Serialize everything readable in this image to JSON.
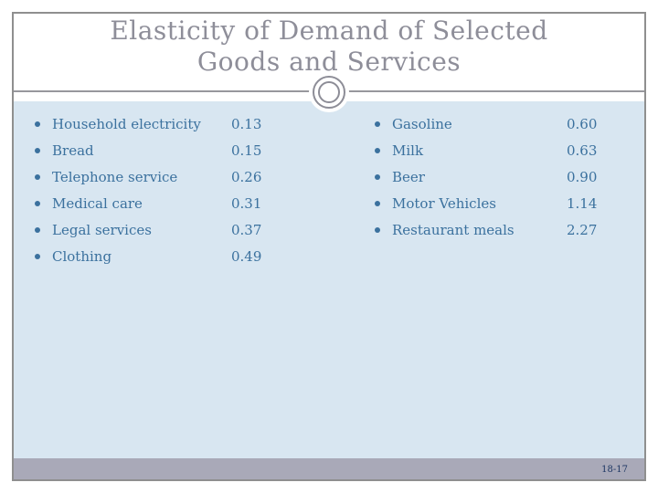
{
  "title": {
    "line1": "Elasticity of Demand of Selected",
    "line2": "Goods and Services"
  },
  "lists": {
    "left": {
      "items": [
        {
          "label": "Household electricity",
          "value": "0.13"
        },
        {
          "label": "Bread",
          "value": "0.15"
        },
        {
          "label": "Telephone service",
          "value": "0.26"
        },
        {
          "label": "Medical care",
          "value": "0.31"
        },
        {
          "label": "Legal services",
          "value": "0.37"
        },
        {
          "label": "Clothing",
          "value": "0.49"
        }
      ]
    },
    "right": {
      "items": [
        {
          "label": "Gasoline",
          "value": "0.60"
        },
        {
          "label": "Milk",
          "value": "0.63"
        },
        {
          "label": "Beer",
          "value": "0.90"
        },
        {
          "label": "Motor Vehicles",
          "value": "1.14"
        },
        {
          "label": "Restaurant meals",
          "value": "2.27"
        }
      ]
    }
  },
  "footer": {
    "page_number": "18-17"
  },
  "colors": {
    "panel_background": "#d8e6f1",
    "footer_bar": "#a9a9b8",
    "frame_border": "#8f8f8f",
    "title_text": "#8e8e99",
    "list_text": "#3b719e",
    "page_number_text": "#1f3864"
  }
}
